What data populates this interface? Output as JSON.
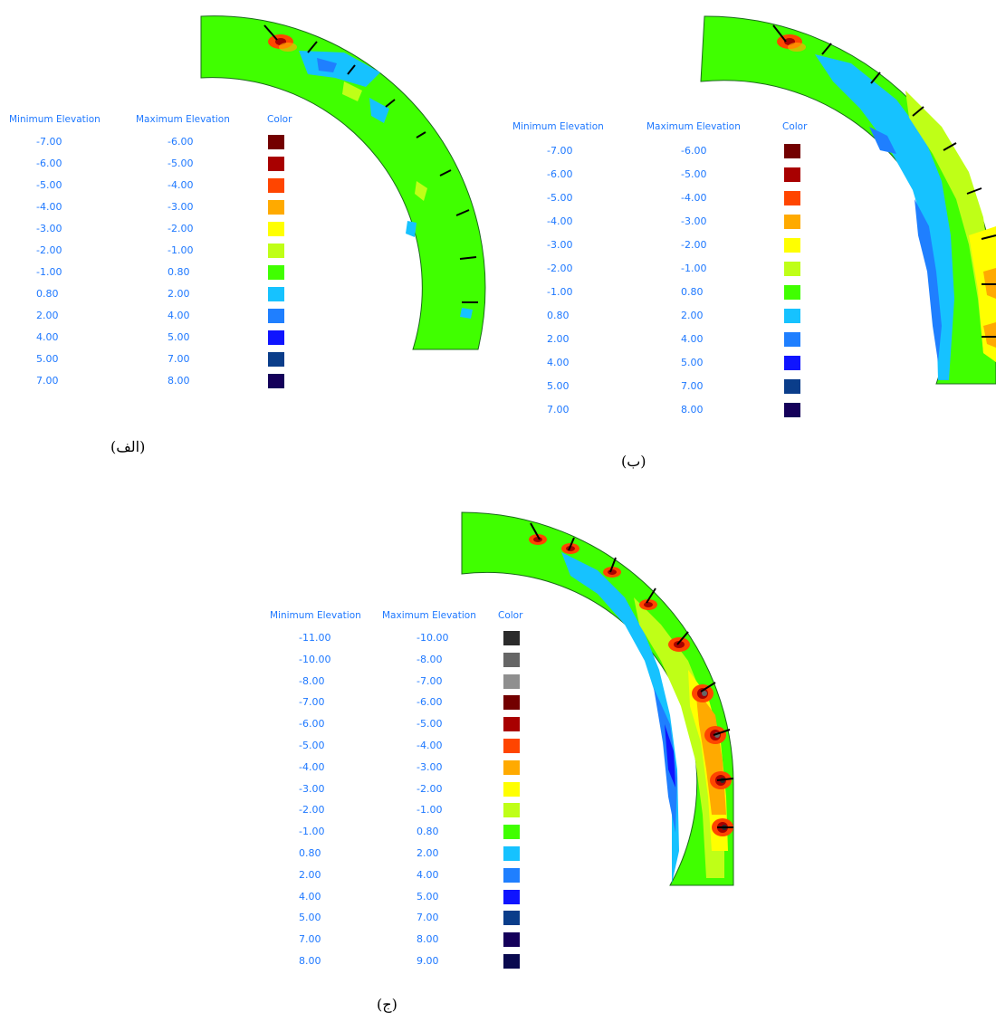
{
  "legend_headers": {
    "min": "Minimum Elevation",
    "max": "Maximum Elevation",
    "color": "Color"
  },
  "colors": {
    "c_m11": "#2b2b2b",
    "c_m10": "#666666",
    "c_m8": "#8f8f8f",
    "c_m7": "#730000",
    "c_m6": "#a80000",
    "c_m5": "#ff4500",
    "c_m4": "#ffaa00",
    "c_m3": "#ffff00",
    "c_m2": "#bfff17",
    "c_m1": "#40ff00",
    "c_08": "#16c2ff",
    "c_2": "#1f7fff",
    "c_4": "#0f14ff",
    "c_5": "#0a3d8a",
    "c_7": "#14005a",
    "c_8": "#0a0a4f"
  },
  "panels": [
    {
      "caption": "(الف)",
      "rows": [
        {
          "min": "-7.00",
          "max": "-6.00",
          "color": "#730000"
        },
        {
          "min": "-6.00",
          "max": "-5.00",
          "color": "#a80000"
        },
        {
          "min": "-5.00",
          "max": "-4.00",
          "color": "#ff4500"
        },
        {
          "min": "-4.00",
          "max": "-3.00",
          "color": "#ffaa00"
        },
        {
          "min": "-3.00",
          "max": "-2.00",
          "color": "#ffff00"
        },
        {
          "min": "-2.00",
          "max": "-1.00",
          "color": "#bfff17"
        },
        {
          "min": "-1.00",
          "max": "0.80",
          "color": "#40ff00"
        },
        {
          "min": "0.80",
          "max": "2.00",
          "color": "#16c2ff"
        },
        {
          "min": "2.00",
          "max": "4.00",
          "color": "#1f7fff"
        },
        {
          "min": "4.00",
          "max": "5.00",
          "color": "#0f14ff"
        },
        {
          "min": "5.00",
          "max": "7.00",
          "color": "#0a3d8a"
        },
        {
          "min": "7.00",
          "max": "8.00",
          "color": "#14005a"
        }
      ]
    },
    {
      "caption": "(ب)",
      "rows": [
        {
          "min": "-7.00",
          "max": "-6.00",
          "color": "#730000"
        },
        {
          "min": "-6.00",
          "max": "-5.00",
          "color": "#a80000"
        },
        {
          "min": "-5.00",
          "max": "-4.00",
          "color": "#ff4500"
        },
        {
          "min": "-4.00",
          "max": "-3.00",
          "color": "#ffaa00"
        },
        {
          "min": "-3.00",
          "max": "-2.00",
          "color": "#ffff00"
        },
        {
          "min": "-2.00",
          "max": "-1.00",
          "color": "#bfff17"
        },
        {
          "min": "-1.00",
          "max": "0.80",
          "color": "#40ff00"
        },
        {
          "min": "0.80",
          "max": "2.00",
          "color": "#16c2ff"
        },
        {
          "min": "2.00",
          "max": "4.00",
          "color": "#1f7fff"
        },
        {
          "min": "4.00",
          "max": "5.00",
          "color": "#0f14ff"
        },
        {
          "min": "5.00",
          "max": "7.00",
          "color": "#0a3d8a"
        },
        {
          "min": "7.00",
          "max": "8.00",
          "color": "#14005a"
        }
      ]
    },
    {
      "caption": "(ج)",
      "rows": [
        {
          "min": "-11.00",
          "max": "-10.00",
          "color": "#2b2b2b"
        },
        {
          "min": "-10.00",
          "max": "-8.00",
          "color": "#666666"
        },
        {
          "min": "-8.00",
          "max": "-7.00",
          "color": "#8f8f8f"
        },
        {
          "min": "-7.00",
          "max": "-6.00",
          "color": "#730000"
        },
        {
          "min": "-6.00",
          "max": "-5.00",
          "color": "#a80000"
        },
        {
          "min": "-5.00",
          "max": "-4.00",
          "color": "#ff4500"
        },
        {
          "min": "-4.00",
          "max": "-3.00",
          "color": "#ffaa00"
        },
        {
          "min": "-3.00",
          "max": "-2.00",
          "color": "#ffff00"
        },
        {
          "min": "-2.00",
          "max": "-1.00",
          "color": "#bfff17"
        },
        {
          "min": "-1.00",
          "max": "0.80",
          "color": "#40ff00"
        },
        {
          "min": "0.80",
          "max": "2.00",
          "color": "#16c2ff"
        },
        {
          "min": "2.00",
          "max": "4.00",
          "color": "#1f7fff"
        },
        {
          "min": "4.00",
          "max": "5.00",
          "color": "#0f14ff"
        },
        {
          "min": "5.00",
          "max": "7.00",
          "color": "#0a3d8a"
        },
        {
          "min": "7.00",
          "max": "8.00",
          "color": "#14005a"
        },
        {
          "min": "8.00",
          "max": "9.00",
          "color": "#0a0a4f"
        }
      ]
    }
  ]
}
